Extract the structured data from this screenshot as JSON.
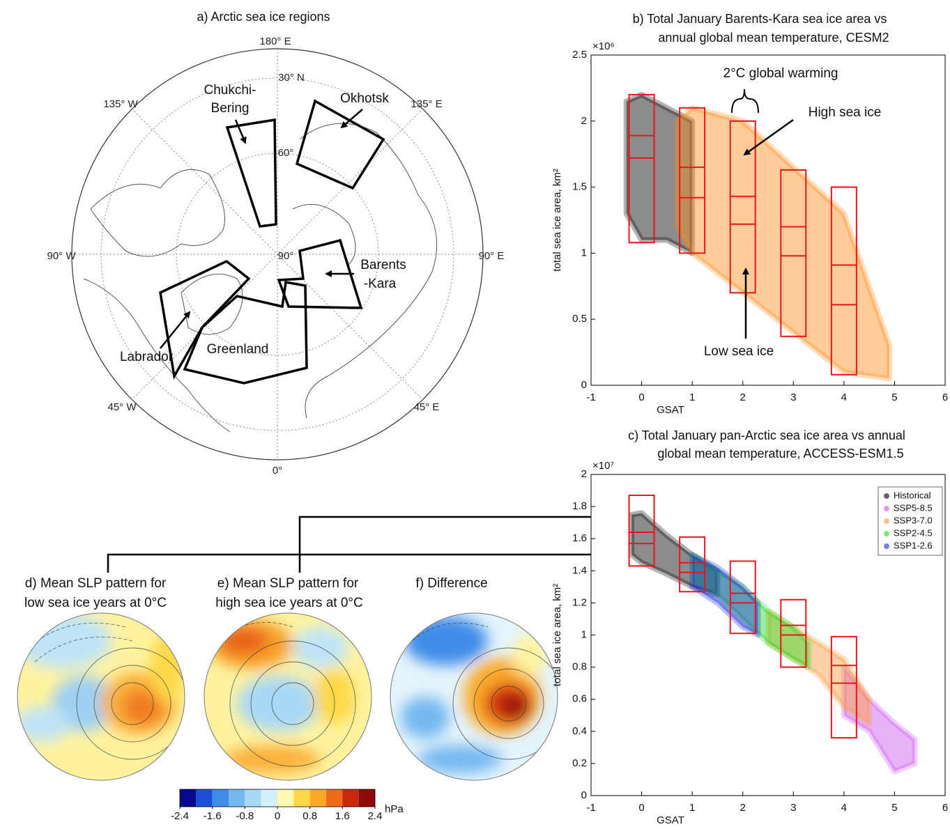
{
  "chart_data": [
    {
      "type": "map",
      "title": "a) Arctic sea ice regions",
      "lon_labels": [
        "180° E",
        "135° E",
        "90° E",
        "45° E",
        "0°",
        "45° W",
        "90° W",
        "135° W"
      ],
      "lat_labels": [
        "30° N",
        "60°",
        "90°"
      ],
      "regions": [
        [
          "Chukchi-",
          "Bering"
        ],
        [
          "Okhotsk"
        ],
        [
          "Barents",
          "-Kara"
        ],
        [
          "Labrador"
        ],
        [
          "Greenland"
        ]
      ]
    },
    {
      "type": "box",
      "title": [
        "b) Total January Barents-Kara sea ice area vs",
        "annual global mean temperature, CESM2"
      ],
      "xlabel": "GSAT",
      "ylabel": "total sea ice area, km²",
      "y_multiplier": "×10⁶",
      "xlim": [
        -1,
        6
      ],
      "xticks": [
        -1,
        0,
        1,
        2,
        3,
        4,
        5,
        6
      ],
      "ylim": [
        0,
        2.5
      ],
      "yticks": [
        0,
        0.5,
        1,
        1.5,
        2,
        2.5
      ],
      "box_color": "#e8161a",
      "series": [
        {
          "color": "#000000",
          "x": [
            -0.3,
            0,
            0.5,
            1.0
          ],
          "lower": [
            1.3,
            1.1,
            1.1,
            1.0
          ],
          "upper": [
            2.15,
            2.2,
            2.1,
            2.0
          ]
        },
        {
          "color": "#ff8c1a",
          "x": [
            0.7,
            1,
            2,
            3,
            4,
            4.9
          ],
          "lower": [
            1.2,
            1.0,
            0.7,
            0.4,
            0.1,
            0.05
          ],
          "upper": [
            2.0,
            2.1,
            2.0,
            1.65,
            1.3,
            0.3
          ]
        }
      ],
      "boxes": [
        {
          "x": 0,
          "low": 1.08,
          "mid_low": 1.72,
          "mid_high": 1.89,
          "high": 2.2
        },
        {
          "x": 1,
          "low": 1.0,
          "mid_low": 1.42,
          "mid_high": 1.65,
          "high": 2.1
        },
        {
          "x": 2,
          "low": 0.7,
          "mid_low": 1.22,
          "mid_high": 1.43,
          "high": 2.0
        },
        {
          "x": 3,
          "low": 0.37,
          "mid_low": 0.98,
          "mid_high": 1.2,
          "high": 1.63
        },
        {
          "x": 4,
          "low": 0.08,
          "mid_low": 0.61,
          "mid_high": 0.91,
          "high": 1.5
        }
      ],
      "annotations": [
        "2°C global warming",
        "High sea ice",
        "Low sea ice"
      ]
    },
    {
      "type": "box",
      "title": [
        "c) Total January pan-Arctic sea ice area vs annual",
        "global mean temperature, ACCESS-ESM1.5"
      ],
      "xlabel": "GSAT",
      "ylabel": "total sea ice area, km²",
      "y_multiplier": "×10⁷",
      "xlim": [
        -1,
        6
      ],
      "xticks": [
        -1,
        0,
        1,
        2,
        3,
        4,
        5,
        6
      ],
      "ylim": [
        0,
        2
      ],
      "yticks": [
        0,
        0.2,
        0.4,
        0.6,
        0.8,
        1,
        1.2,
        1.4,
        1.6,
        1.8,
        2
      ],
      "box_color": "#e8161a",
      "legend": "upper right",
      "series": [
        {
          "name": "Historical",
          "color": "#000000",
          "x": [
            -0.2,
            0,
            0.5,
            1,
            1.5
          ],
          "lower": [
            1.5,
            1.45,
            1.38,
            1.3,
            1.25
          ],
          "upper": [
            1.75,
            1.76,
            1.62,
            1.5,
            1.4
          ]
        },
        {
          "name": "SSP5-8.5",
          "color": "#cc55ee",
          "x": [
            4,
            4.5,
            5,
            5.4
          ],
          "lower": [
            0.5,
            0.4,
            0.15,
            0.2
          ],
          "upper": [
            0.8,
            0.6,
            0.45,
            0.35
          ]
        },
        {
          "name": "SSP3-7.0",
          "color": "#ff9a3a",
          "x": [
            2.5,
            3,
            3.5,
            4,
            4.5
          ],
          "lower": [
            0.95,
            0.85,
            0.75,
            0.55,
            0.45
          ],
          "upper": [
            1.15,
            1.05,
            0.95,
            0.85,
            0.6
          ]
        },
        {
          "name": "SSP2-4.5",
          "color": "#22dd22",
          "x": [
            1,
            1.5,
            2,
            2.5,
            3,
            3.3
          ],
          "lower": [
            1.35,
            1.25,
            1.1,
            0.95,
            0.85,
            0.8
          ],
          "upper": [
            1.5,
            1.4,
            1.3,
            1.15,
            1.05,
            0.95
          ]
        },
        {
          "name": "SSP1-2.6",
          "color": "#1a2ee0",
          "x": [
            1,
            1.5,
            2,
            2.3
          ],
          "lower": [
            1.3,
            1.2,
            1.05,
            1.0
          ],
          "upper": [
            1.5,
            1.42,
            1.3,
            1.2
          ]
        }
      ],
      "boxes": [
        {
          "x": 0,
          "low": 1.43,
          "mid_low": 1.57,
          "mid_high": 1.64,
          "high": 1.87
        },
        {
          "x": 1,
          "low": 1.27,
          "mid_low": 1.39,
          "mid_high": 1.45,
          "high": 1.61
        },
        {
          "x": 2,
          "low": 1.01,
          "mid_low": 1.2,
          "mid_high": 1.26,
          "high": 1.46
        },
        {
          "x": 3,
          "low": 0.8,
          "mid_low": 1.0,
          "mid_high": 1.06,
          "high": 1.22
        },
        {
          "x": 4,
          "low": 0.36,
          "mid_low": 0.7,
          "mid_high": 0.81,
          "high": 0.99
        }
      ]
    },
    {
      "type": "map",
      "title": [
        "d) Mean SLP pattern for",
        "low sea ice years at 0°C"
      ]
    },
    {
      "type": "map",
      "title": [
        "e) Mean SLP pattern for",
        "high sea ice years at 0°C"
      ]
    },
    {
      "type": "map",
      "title": [
        "f) Difference"
      ]
    },
    {
      "type": "colorbar",
      "unit": "hPa",
      "bins": [
        -2.4,
        -2.0,
        -1.6,
        -1.2,
        -0.8,
        -0.4,
        0,
        0.4,
        0.8,
        1.2,
        1.6,
        2.0,
        2.4
      ],
      "colors": [
        "#08088f",
        "#1a4fd6",
        "#3f8ce8",
        "#75b8f0",
        "#a8d8f5",
        "#d4efff",
        "#fff8b0",
        "#ffd84a",
        "#fbaa2a",
        "#f06a1a",
        "#c8280e",
        "#8e0a0a"
      ],
      "ticks": [
        -2.4,
        -1.6,
        -0.8,
        0,
        0.8,
        1.6,
        2.4
      ]
    }
  ]
}
